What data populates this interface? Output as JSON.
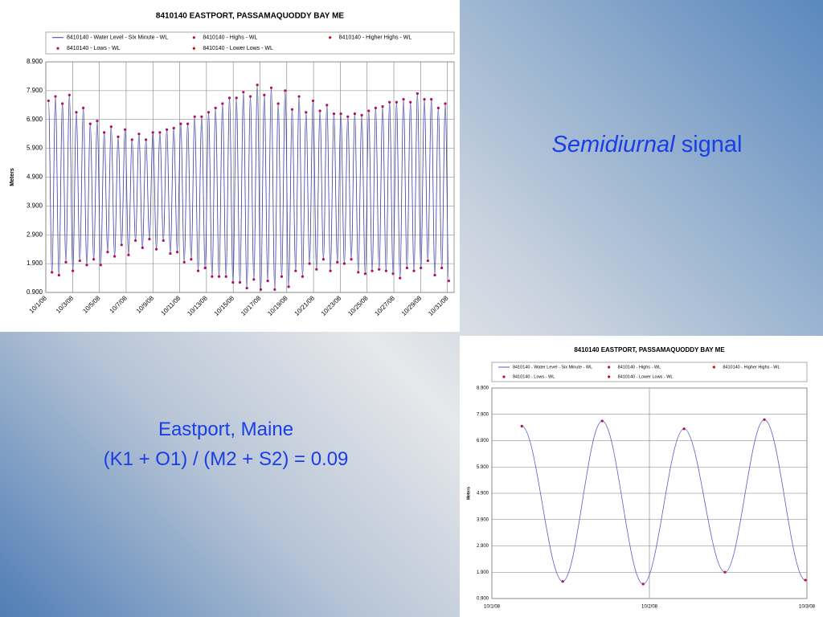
{
  "slide": {
    "heading": {
      "italic": "Semidiurnal",
      "rest": "signal"
    },
    "caption": [
      "Eastport, Maine",
      "(K1 + O1) / (M2 + S2) = 0.09"
    ]
  },
  "chart_data": [
    {
      "type": "line",
      "title": "8410140  EASTPORT, PASSAMAQUODDY BAY ME",
      "y_label": "Meters",
      "xlim": [
        0,
        30.5
      ],
      "xticks": [
        {
          "value": 0,
          "label": "10/1/08"
        },
        {
          "value": 2,
          "label": "10/3/08"
        },
        {
          "value": 4,
          "label": "10/5/08"
        },
        {
          "value": 6,
          "label": "10/7/08"
        },
        {
          "value": 8,
          "label": "10/9/08"
        },
        {
          "value": 10,
          "label": "10/11/08"
        },
        {
          "value": 12,
          "label": "10/13/08"
        },
        {
          "value": 14,
          "label": "10/15/08"
        },
        {
          "value": 16,
          "label": "10/17/08"
        },
        {
          "value": 18,
          "label": "10/19/08"
        },
        {
          "value": 20,
          "label": "10/21/08"
        },
        {
          "value": 22,
          "label": "10/23/08"
        },
        {
          "value": 24,
          "label": "10/25/08"
        },
        {
          "value": 26,
          "label": "10/27/08"
        },
        {
          "value": 28,
          "label": "10/29/08"
        },
        {
          "value": 30,
          "label": "10/31/08"
        }
      ],
      "ylim": [
        0.9,
        8.9
      ],
      "yticks": [
        {
          "value": 0.9,
          "label": "0.900"
        },
        {
          "value": 1.9,
          "label": "1.900"
        },
        {
          "value": 2.9,
          "label": "2.900"
        },
        {
          "value": 3.9,
          "label": "3.900"
        },
        {
          "value": 4.9,
          "label": "4.900"
        },
        {
          "value": 5.9,
          "label": "5.900"
        },
        {
          "value": 6.9,
          "label": "6.900"
        },
        {
          "value": 7.9,
          "label": "7.900"
        },
        {
          "value": 8.9,
          "label": "8.900"
        }
      ],
      "grid": true,
      "series": [
        {
          "name": "8410140 - Water Level - Six Minute - WL",
          "color": "#3a3aa8",
          "marker": "line"
        },
        {
          "name": "8410140 - Highs - WL",
          "color": "#b0105a",
          "marker": "circle",
          "x": [
            0.2,
            0.72,
            1.24,
            1.76,
            2.28,
            2.8,
            3.32,
            3.84,
            4.36,
            4.88,
            5.4,
            5.92,
            6.44,
            6.96,
            7.48,
            8,
            8.52,
            9.04,
            9.56,
            10.08,
            10.6,
            11.12,
            11.64,
            12.16,
            12.68,
            13.2,
            13.72,
            14.24,
            14.76,
            15.28,
            15.8,
            16.32,
            16.84,
            17.36,
            17.88,
            18.4,
            18.92,
            19.44,
            19.96,
            20.48,
            21,
            21.52,
            22.04,
            22.56,
            23.08,
            23.6,
            24.12,
            24.64,
            25.16,
            25.68,
            26.2,
            26.72,
            27.24,
            27.76,
            28.28,
            28.8,
            29.32,
            29.84
          ],
          "values": [
            7.55,
            7.7,
            7.45,
            7.75,
            7.15,
            7.3,
            6.75,
            6.85,
            6.45,
            6.65,
            6.3,
            6.55,
            6.2,
            6.4,
            6.2,
            6.45,
            6.45,
            6.55,
            6.6,
            6.75,
            6.75,
            7.0,
            7.0,
            7.15,
            7.3,
            7.45,
            7.65,
            7.65,
            7.85,
            7.7,
            8.1,
            7.75,
            8.0,
            7.45,
            7.9,
            7.25,
            7.7,
            7.15,
            7.55,
            7.2,
            7.4,
            7.1,
            7.1,
            7.0,
            7.1,
            7.05,
            7.2,
            7.3,
            7.35,
            7.5,
            7.5,
            7.6,
            7.5,
            7.8,
            7.6,
            7.6,
            7.3,
            7.45
          ]
        },
        {
          "name": "8410140 - Higher Highs - WL",
          "color": "#cc0000",
          "marker": "diamond",
          "x": [],
          "values": []
        },
        {
          "name": "8410140 - Lows - WL",
          "color": "#b0105a",
          "marker": "circle",
          "x": [
            0.46,
            0.98,
            1.5,
            2.02,
            2.54,
            3.06,
            3.58,
            4.1,
            4.62,
            5.14,
            5.66,
            6.18,
            6.7,
            7.22,
            7.74,
            8.26,
            8.78,
            9.3,
            9.82,
            10.34,
            10.86,
            11.38,
            11.9,
            12.42,
            12.94,
            13.46,
            13.98,
            14.5,
            15.02,
            15.54,
            16.06,
            16.58,
            17.1,
            17.62,
            18.14,
            18.66,
            19.18,
            19.7,
            20.22,
            20.74,
            21.26,
            21.78,
            22.3,
            22.82,
            23.34,
            23.86,
            24.38,
            24.9,
            25.42,
            25.94,
            26.46,
            26.98,
            27.5,
            28.02,
            28.54,
            29.06,
            29.58,
            30.1
          ],
          "values": [
            1.6,
            1.5,
            1.95,
            1.65,
            2.0,
            1.85,
            2.05,
            1.85,
            2.3,
            2.15,
            2.55,
            2.2,
            2.7,
            2.45,
            2.75,
            2.4,
            2.7,
            2.25,
            2.3,
            1.95,
            2.05,
            1.65,
            1.75,
            1.45,
            1.45,
            1.45,
            1.25,
            1.25,
            1.05,
            1.35,
            1.0,
            1.3,
            1.0,
            1.45,
            1.1,
            1.65,
            1.45,
            1.9,
            1.7,
            2.05,
            1.65,
            1.95,
            1.9,
            2.05,
            1.6,
            1.55,
            1.65,
            1.7,
            1.65,
            1.55,
            1.4,
            1.75,
            1.65,
            1.75,
            2.0,
            1.5,
            1.75,
            1.3
          ]
        },
        {
          "name": "8410140 - Lower Lows - WL",
          "color": "#cc0000",
          "marker": "diamond",
          "x": [],
          "values": []
        }
      ]
    },
    {
      "type": "line",
      "title": "8410140  EASTPORT, PASSAMAQUODDY BAY ME",
      "y_label": "Meters",
      "xlim": [
        0,
        2
      ],
      "xticks": [
        {
          "value": 0,
          "label": "10/1/08"
        },
        {
          "value": 1,
          "label": "10/2/08"
        },
        {
          "value": 2,
          "label": "10/3/08"
        }
      ],
      "ylim": [
        0.9,
        8.9
      ],
      "yticks": [
        {
          "value": 0.9,
          "label": "0.900"
        },
        {
          "value": 1.9,
          "label": "1.900"
        },
        {
          "value": 2.9,
          "label": "2.900"
        },
        {
          "value": 3.9,
          "label": "3.900"
        },
        {
          "value": 4.9,
          "label": "4.900"
        },
        {
          "value": 5.9,
          "label": "5.900"
        },
        {
          "value": 6.9,
          "label": "6.900"
        },
        {
          "value": 7.9,
          "label": "7.900"
        },
        {
          "value": 8.9,
          "label": "8.900"
        }
      ],
      "grid": true,
      "series": [
        {
          "name": "8410140 - Water Level - Six Minute - WL",
          "color": "#5a5ac8",
          "marker": "line"
        },
        {
          "name": "8410140 - Highs - WL",
          "color": "#b0105a",
          "marker": "circle",
          "x": [
            0.19,
            0.7,
            1.22,
            1.73
          ],
          "values": [
            7.45,
            7.65,
            7.35,
            7.7
          ]
        },
        {
          "name": "8410140 - Higher Highs - WL",
          "color": "#cc0000",
          "marker": "diamond",
          "x": [],
          "values": []
        },
        {
          "name": "8410140 - Lows - WL",
          "color": "#b0105a",
          "marker": "circle",
          "x": [
            0.45,
            0.96,
            1.48,
            1.99
          ],
          "values": [
            1.55,
            1.45,
            1.9,
            1.6
          ]
        },
        {
          "name": "8410140 - Lower Lows - WL",
          "color": "#cc0000",
          "marker": "diamond",
          "x": [],
          "values": []
        }
      ]
    }
  ]
}
